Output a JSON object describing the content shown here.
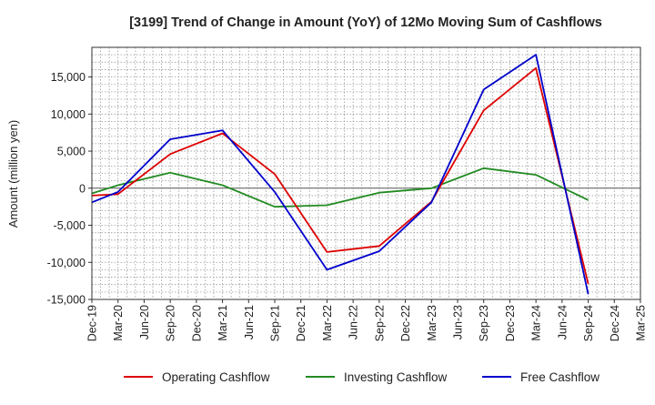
{
  "chart_data": {
    "type": "line",
    "title": "[3199]  Trend of Change in Amount (YoY) of 12Mo Moving Sum of Cashflows",
    "xlabel": "",
    "ylabel": "Amount (million yen)",
    "ylim": [
      -15000,
      19000
    ],
    "yticks": [
      -15000,
      -10000,
      -5000,
      0,
      5000,
      10000,
      15000
    ],
    "ytick_labels": [
      "-15,000",
      "-10,000",
      "-5,000",
      "0",
      "5,000",
      "10,000",
      "15,000"
    ],
    "categories": [
      "Dec-19",
      "Mar-20",
      "Jun-20",
      "Sep-20",
      "Dec-20",
      "Mar-21",
      "Jun-21",
      "Sep-21",
      "Dec-21",
      "Mar-22",
      "Jun-22",
      "Sep-22",
      "Dec-22",
      "Mar-23",
      "Jun-23",
      "Sep-23",
      "Dec-23",
      "Mar-24",
      "Jun-24",
      "Sep-24",
      "Dec-24",
      "Mar-25"
    ],
    "grid": true,
    "legend_position": "bottom",
    "series": [
      {
        "name": "Operating Cashflow",
        "color": "#dd0000",
        "points": [
          {
            "x": "Dec-19",
            "y": -1000
          },
          {
            "x": "Mar-20",
            "y": -800
          },
          {
            "x": "Sep-20",
            "y": 4600
          },
          {
            "x": "Mar-21",
            "y": 7400
          },
          {
            "x": "Sep-21",
            "y": 1900
          },
          {
            "x": "Mar-22",
            "y": -8600
          },
          {
            "x": "Sep-22",
            "y": -7800
          },
          {
            "x": "Mar-23",
            "y": -1800
          },
          {
            "x": "Sep-23",
            "y": 10500
          },
          {
            "x": "Mar-24",
            "y": 16200
          },
          {
            "x": "Sep-24",
            "y": -12900
          }
        ]
      },
      {
        "name": "Investing Cashflow",
        "color": "#228B22",
        "points": [
          {
            "x": "Dec-19",
            "y": -700
          },
          {
            "x": "Mar-20",
            "y": 400
          },
          {
            "x": "Sep-20",
            "y": 2100
          },
          {
            "x": "Mar-21",
            "y": 400
          },
          {
            "x": "Sep-21",
            "y": -2500
          },
          {
            "x": "Mar-22",
            "y": -2300
          },
          {
            "x": "Sep-22",
            "y": -600
          },
          {
            "x": "Mar-23",
            "y": 0
          },
          {
            "x": "Sep-23",
            "y": 2700
          },
          {
            "x": "Mar-24",
            "y": 1800
          },
          {
            "x": "Sep-24",
            "y": -1600
          }
        ]
      },
      {
        "name": "Free Cashflow",
        "color": "#0000cc",
        "points": [
          {
            "x": "Dec-19",
            "y": -1900
          },
          {
            "x": "Mar-20",
            "y": -500
          },
          {
            "x": "Sep-20",
            "y": 6600
          },
          {
            "x": "Mar-21",
            "y": 7800
          },
          {
            "x": "Sep-21",
            "y": -500
          },
          {
            "x": "Mar-22",
            "y": -11000
          },
          {
            "x": "Sep-22",
            "y": -8500
          },
          {
            "x": "Mar-23",
            "y": -1900
          },
          {
            "x": "Sep-23",
            "y": 13300
          },
          {
            "x": "Mar-24",
            "y": 18000
          },
          {
            "x": "Sep-24",
            "y": -14300
          }
        ]
      }
    ]
  }
}
